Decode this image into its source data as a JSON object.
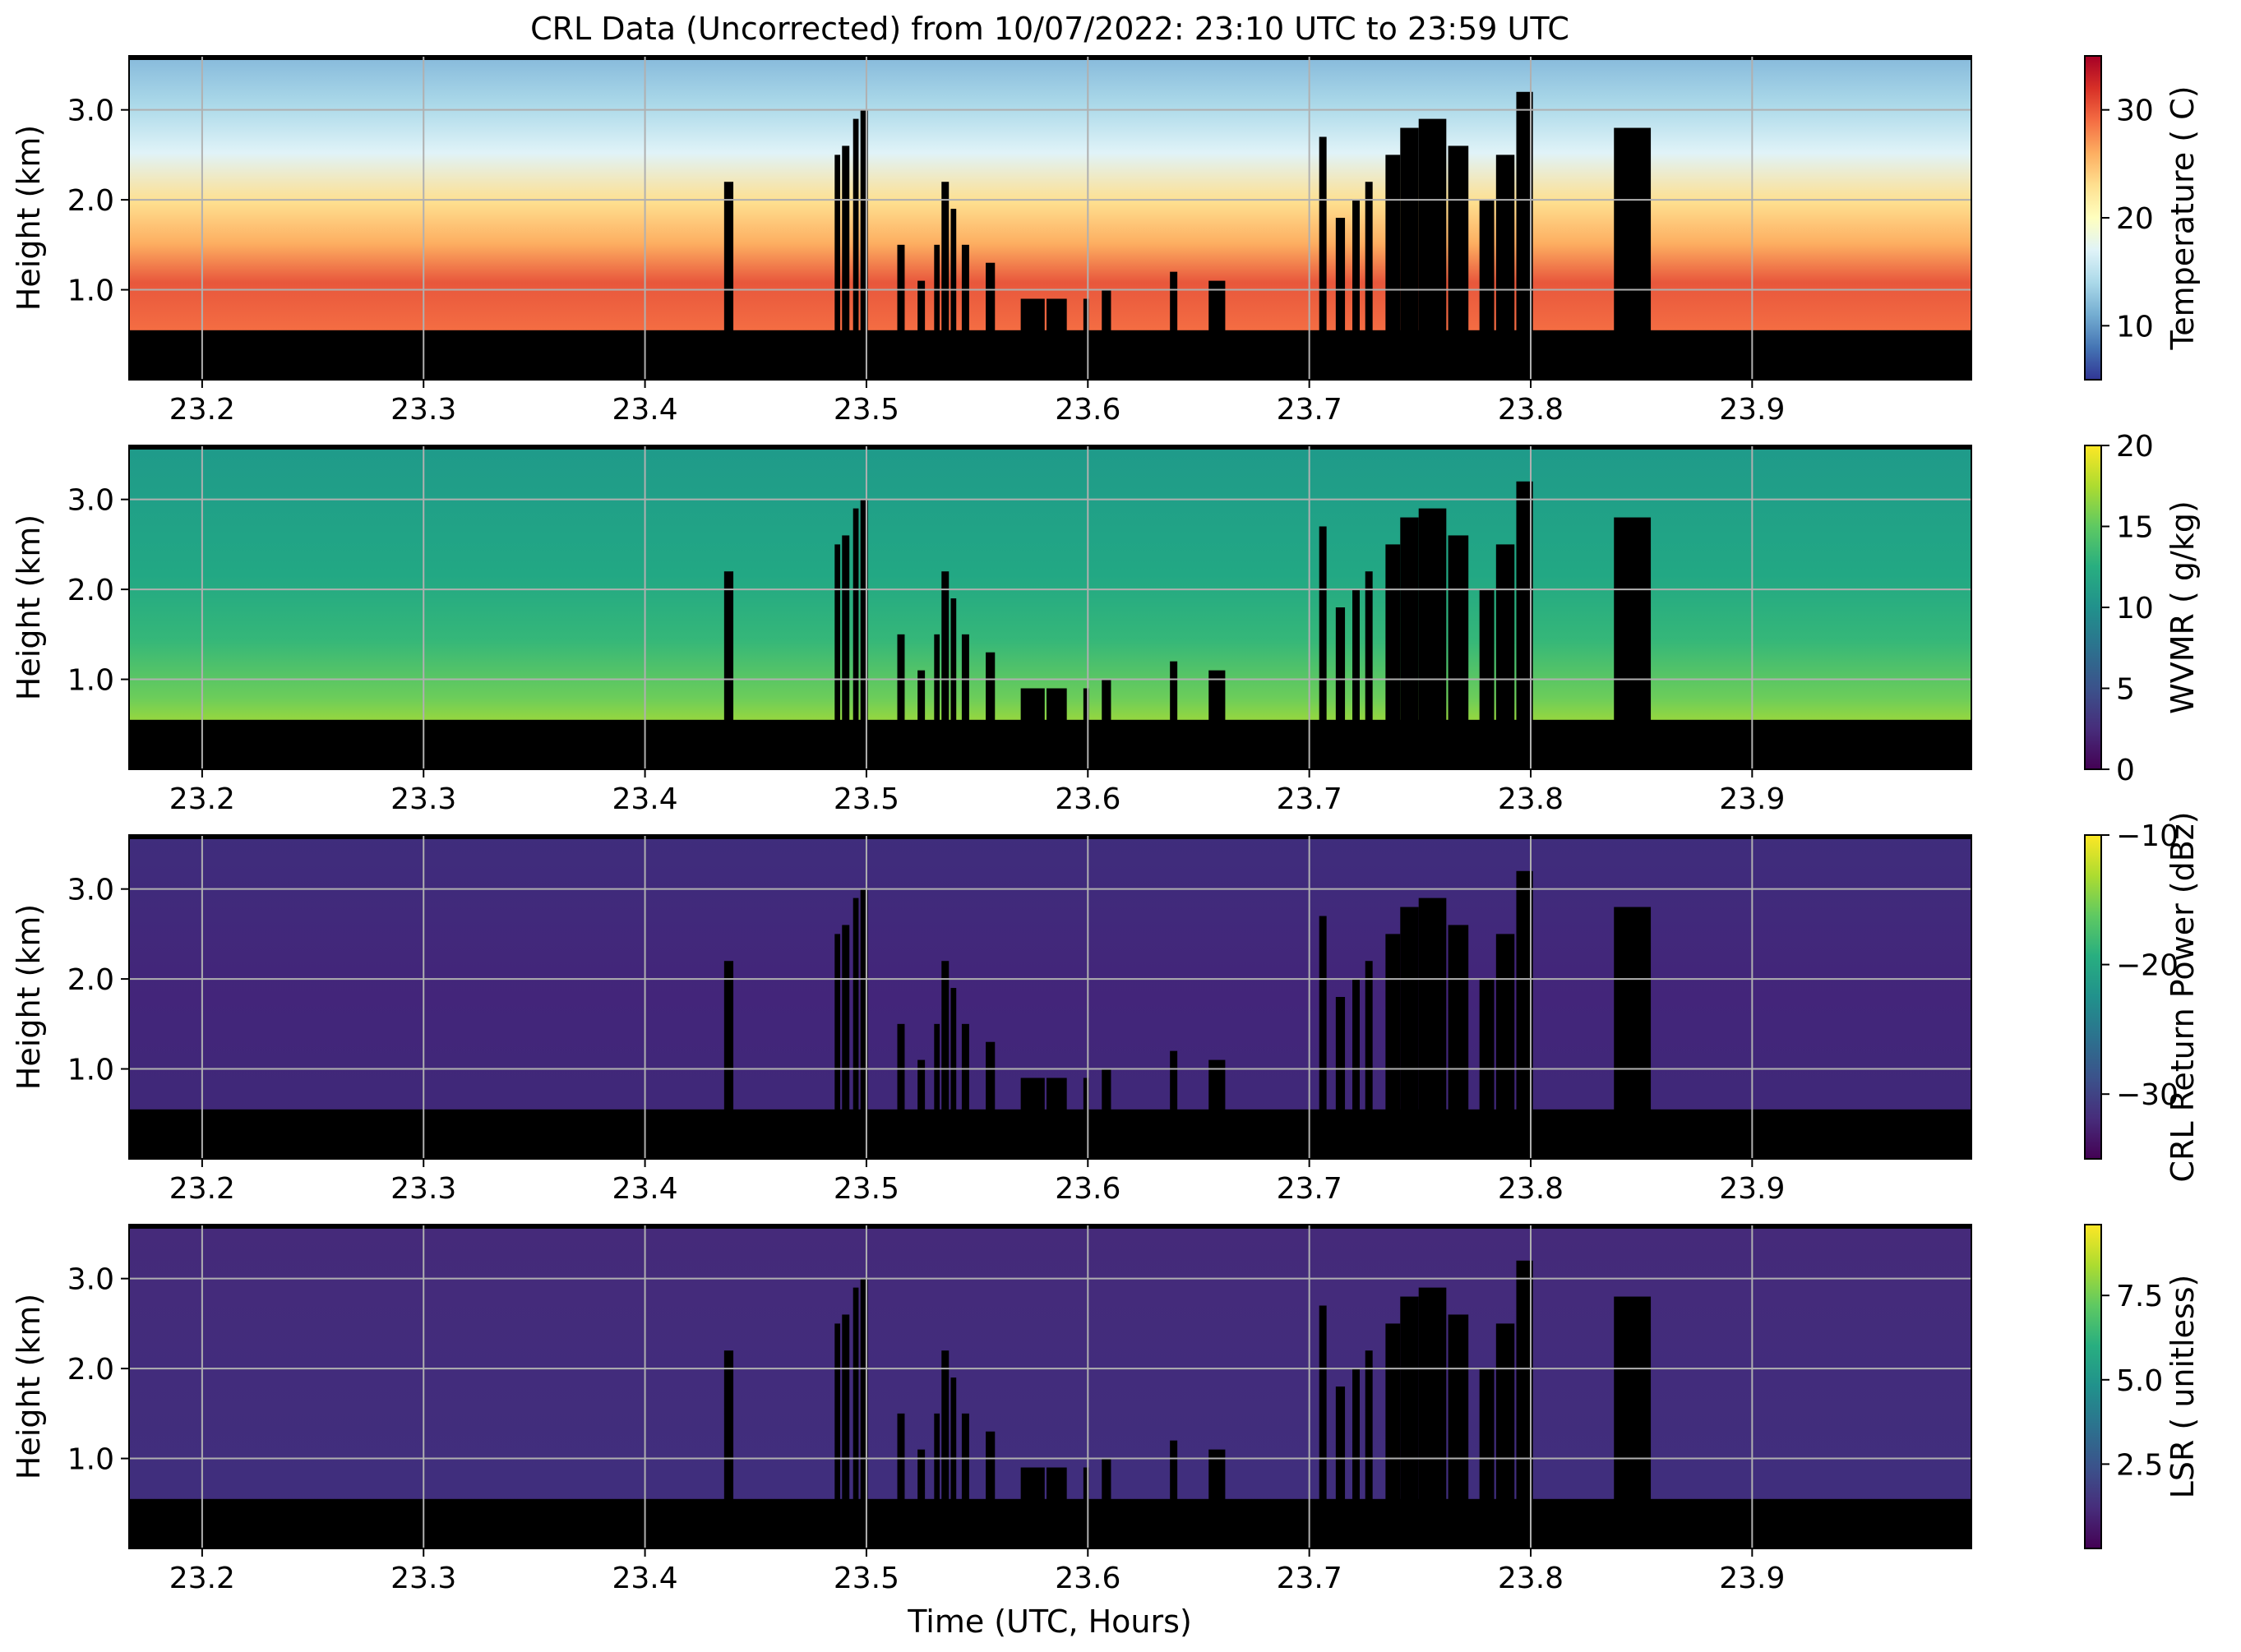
{
  "figure": {
    "title": "CRL Data (Uncorrected) from 10/07/2022: 23:10 UTC to 23:59 UTC",
    "xlabel": "Time (UTC, Hours)"
  },
  "chart_data": [
    {
      "type": "heatmap",
      "title": "",
      "ylabel": "Height (km)",
      "colorbar_label": "Temperature ( C)",
      "colormap": "RdYlBu_r",
      "colorbar_range": [
        5,
        35
      ],
      "colorbar_ticks": [
        10,
        20,
        30
      ],
      "xlim": [
        23.167,
        23.999
      ],
      "ylim": [
        0.0,
        3.6
      ],
      "xticks": [
        23.2,
        23.3,
        23.4,
        23.5,
        23.6,
        23.7,
        23.8,
        23.9
      ],
      "yticks": [
        1.0,
        2.0,
        3.0
      ],
      "grid": true,
      "field_profile": [
        [
          0.5,
          28
        ],
        [
          1.1,
          30
        ],
        [
          1.6,
          23
        ],
        [
          2.2,
          19
        ],
        [
          3.0,
          13
        ],
        [
          3.6,
          9
        ]
      ],
      "masked_color": "#000000"
    },
    {
      "type": "heatmap",
      "title": "",
      "ylabel": "Height (km)",
      "colorbar_label": "WVMR ( g/kg)",
      "colormap": "viridis",
      "colorbar_range": [
        0,
        20
      ],
      "colorbar_ticks": [
        0,
        5,
        10,
        15,
        20
      ],
      "xlim": [
        23.167,
        23.999
      ],
      "ylim": [
        0.0,
        3.6
      ],
      "xticks": [
        23.2,
        23.3,
        23.4,
        23.5,
        23.6,
        23.7,
        23.8,
        23.9
      ],
      "yticks": [
        1.0,
        2.0,
        3.0
      ],
      "grid": true,
      "field_profile": [
        [
          0.5,
          19
        ],
        [
          0.8,
          17
        ],
        [
          1.2,
          14.5
        ],
        [
          2.0,
          11
        ],
        [
          3.0,
          9.5
        ],
        [
          3.6,
          9
        ]
      ],
      "masked_color": "#000000"
    },
    {
      "type": "heatmap",
      "title": "",
      "ylabel": "Height (km)",
      "colorbar_label": "CRL Return Power (dBz)",
      "colormap": "viridis",
      "colorbar_range": [
        -35,
        -10
      ],
      "colorbar_ticks": [
        -30,
        -20,
        -10
      ],
      "xlim": [
        23.167,
        23.999
      ],
      "ylim": [
        0.0,
        3.6
      ],
      "xticks": [
        23.2,
        23.3,
        23.4,
        23.5,
        23.6,
        23.7,
        23.8,
        23.9
      ],
      "yticks": [
        1.0,
        2.0,
        3.0
      ],
      "grid": true,
      "field_profile": [
        [
          0.4,
          -32
        ],
        [
          3.6,
          -33
        ]
      ],
      "masked_color": "#000000"
    },
    {
      "type": "heatmap",
      "title": "",
      "ylabel": "Height (km)",
      "colorbar_label": "LSR ( unitless)",
      "colormap": "viridis",
      "colorbar_range": [
        0,
        9.6
      ],
      "colorbar_ticks": [
        2.5,
        5.0,
        7.5
      ],
      "xlim": [
        23.167,
        23.999
      ],
      "ylim": [
        0.0,
        3.6
      ],
      "xticks": [
        23.2,
        23.3,
        23.4,
        23.5,
        23.6,
        23.7,
        23.8,
        23.9
      ],
      "yticks": [
        1.0,
        2.0,
        3.0
      ],
      "grid": true,
      "field_profile": [
        [
          0.5,
          1.0
        ],
        [
          3.6,
          0.8
        ]
      ],
      "masked_color": "#000000"
    }
  ],
  "tick_decimals": {
    "x": 1,
    "y": 1,
    "cbar_3": 1
  }
}
